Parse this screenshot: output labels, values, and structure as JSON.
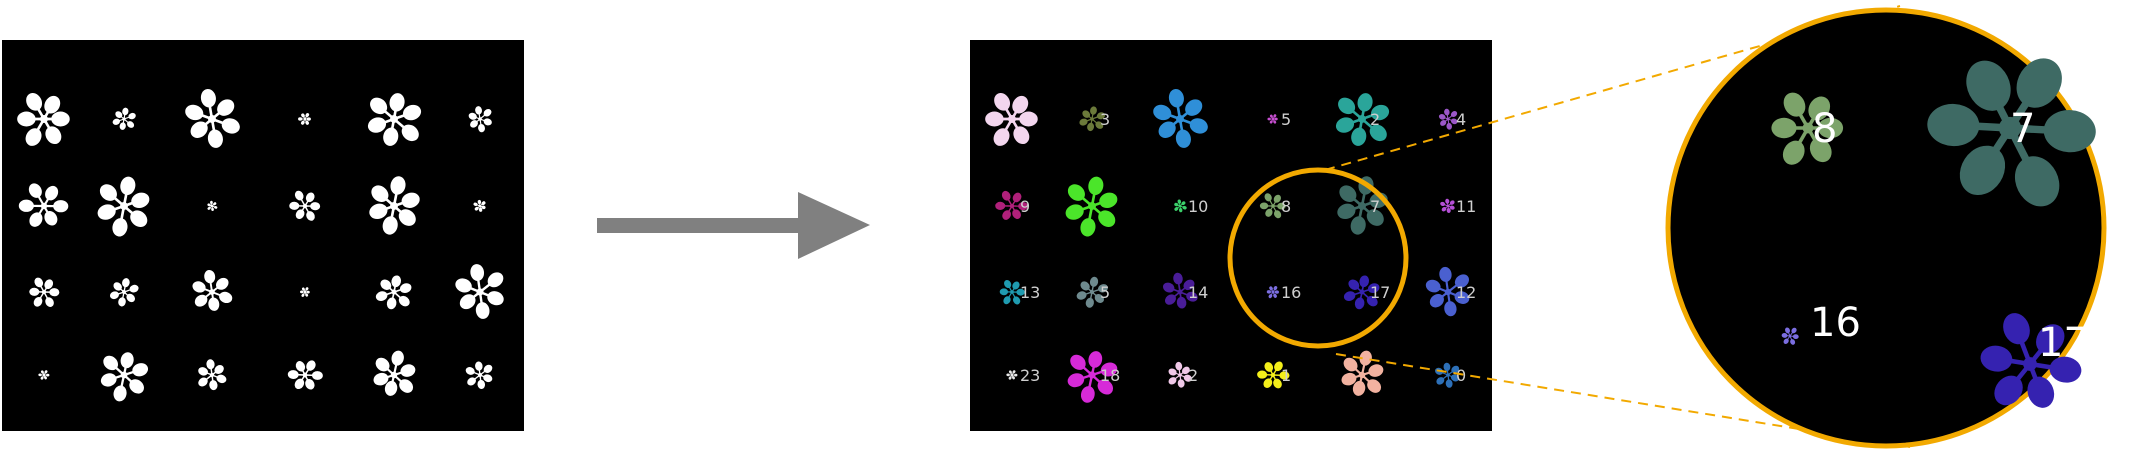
{
  "colors": {
    "background": "#ffffff",
    "panel": "#000000",
    "raw_plant": "#ffffff",
    "arrow": "#808080",
    "highlight": "#f2a900"
  },
  "icons": [
    "arrow-right-icon",
    "magnifier-circle-icon"
  ],
  "raw_panel": {
    "plant_count": 24,
    "description_color": "#ffffff"
  },
  "arrow": {
    "direction": "right"
  },
  "segmented_panel": {
    "plants": [
      {
        "label": "",
        "color": "#f3d6ee"
      },
      {
        "label": "3",
        "color": "#6b7a3a"
      },
      {
        "label": "",
        "color": "#2f8fd8"
      },
      {
        "label": "5",
        "color": "#c64fd0"
      },
      {
        "label": "2",
        "color": "#2aa59a"
      },
      {
        "label": "4",
        "color": "#9b57c8"
      },
      {
        "label": "9",
        "color": "#b0207a"
      },
      {
        "label": "",
        "color": "#4be52a"
      },
      {
        "label": "10",
        "color": "#3bd06a"
      },
      {
        "label": "8",
        "color": "#7ca36a"
      },
      {
        "label": "7",
        "color": "#3e6a64"
      },
      {
        "label": "11",
        "color": "#b44fd6"
      },
      {
        "label": "13",
        "color": "#1f9bb0"
      },
      {
        "label": "5",
        "color": "#6e8a8e"
      },
      {
        "label": "14",
        "color": "#4a1d98"
      },
      {
        "label": "16",
        "color": "#7b6ee0"
      },
      {
        "label": "17",
        "color": "#3522b0"
      },
      {
        "label": "12",
        "color": "#4a60d0"
      },
      {
        "label": "23",
        "color": "#e8e8e8"
      },
      {
        "label": "18",
        "color": "#d62ad8"
      },
      {
        "label": "2",
        "color": "#f0c8e8"
      },
      {
        "label": "1",
        "color": "#f4ef1a"
      },
      {
        "label": "",
        "color": "#f2b2a0"
      },
      {
        "label": "0",
        "color": "#2d70b8"
      }
    ]
  },
  "zoom": {
    "plants": [
      {
        "label": "8",
        "color": "#7ca36a"
      },
      {
        "label": "7",
        "color": "#3e6a64"
      },
      {
        "label": "16",
        "color": "#7b6ee0"
      },
      {
        "label": "17",
        "color": "#3522b0"
      }
    ]
  }
}
